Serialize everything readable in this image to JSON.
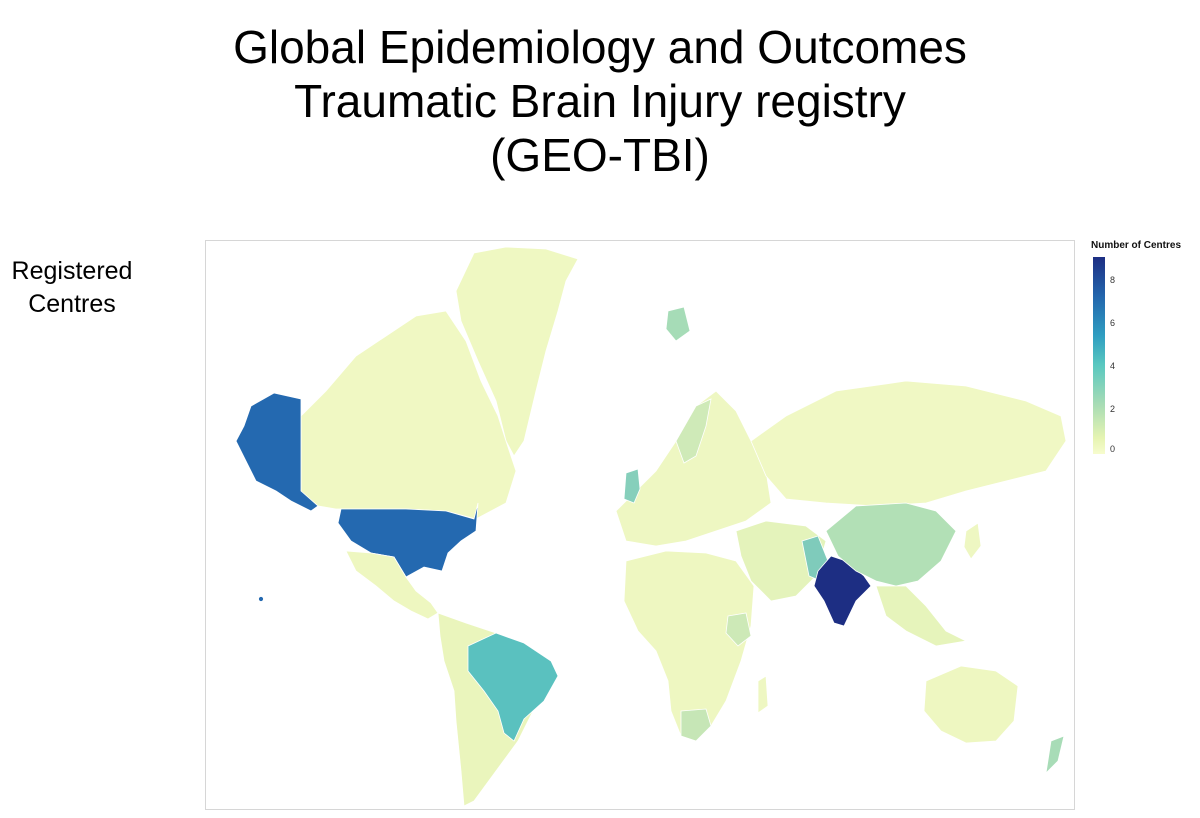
{
  "title": {
    "line1": "Global Epidemiology and Outcomes",
    "line2": "Traumatic Brain Injury registry",
    "line3": "(GEO-TBI)"
  },
  "side_label": {
    "line1": "Registered",
    "line2": "Centres"
  },
  "legend": {
    "title": "Number of Centres",
    "ticks": [
      "8",
      "6",
      "4",
      "2",
      "0"
    ],
    "scale_min": 0,
    "scale_max": 9
  },
  "colors": {
    "low": "#f2f9c4",
    "mid": "#5cc2c0",
    "high": "#1d2e83",
    "border": "#ffffff"
  },
  "map_data": {
    "measure": "Number of Centres",
    "highlighted": [
      {
        "region": "India",
        "level": "highest"
      },
      {
        "region": "United States",
        "level": "high"
      },
      {
        "region": "Brazil",
        "level": "medium"
      },
      {
        "region": "China",
        "level": "low"
      },
      {
        "region": "United Kingdom",
        "level": "low"
      },
      {
        "region": "Pakistan",
        "level": "low"
      }
    ]
  }
}
